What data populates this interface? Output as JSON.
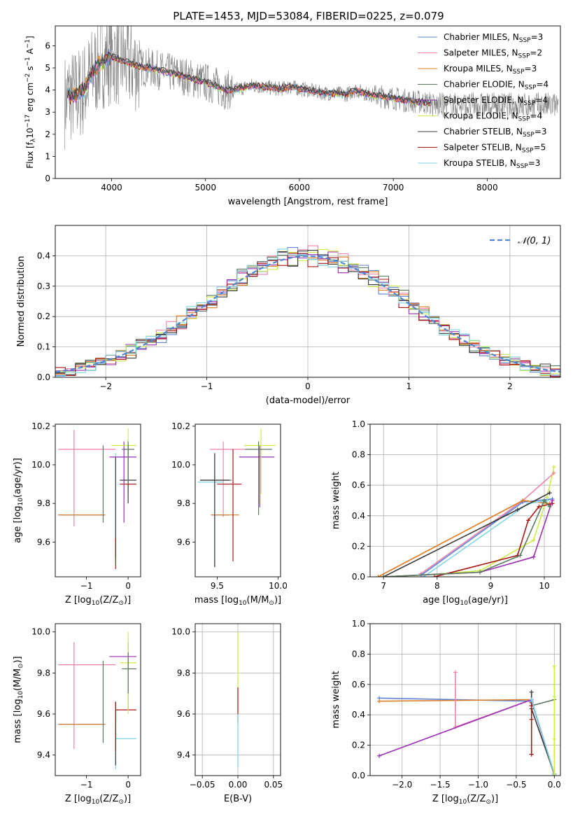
{
  "figure_title": "PLATE=1453, MJD=53084, FIBERID=0225, z=0.079",
  "colors": {
    "chabrier_miles": "#5b86d6",
    "salpeter_miles": "#ee82a8",
    "kroupa_miles": "#e07b22",
    "chabrier_elodie": "#5a7a60",
    "salpeter_elodie": "#9b2fb8",
    "kroupa_elodie": "#ccec4a",
    "chabrier_stelib": "#3a3a3a",
    "salpeter_stelib": "#aa1414",
    "kroupa_stelib": "#7fd6e0",
    "observed": "#808080",
    "normal_fit": "#4f86cf",
    "grid": "#b0b0b0"
  },
  "chart_data": [
    {
      "id": "spectrum",
      "type": "line",
      "xlabel": "wavelength [Angstrom, rest frame]",
      "ylabel_parts": [
        "Flux [f",
        "λ",
        "10",
        "−17",
        " erg cm",
        "−2",
        " s",
        "−1",
        " A",
        "−1",
        "]"
      ],
      "xlim": [
        3400,
        8780
      ],
      "ylim": [
        0,
        6.9
      ],
      "xticks": [
        "4000",
        "5000",
        "6000",
        "7000",
        "8000"
      ],
      "xtick_values": [
        4000,
        5000,
        6000,
        7000,
        8000
      ],
      "yticks": [
        "0",
        "1",
        "2",
        "3",
        "4",
        "5",
        "6"
      ],
      "ytick_values": [
        0,
        1,
        2,
        3,
        4,
        5,
        6
      ],
      "legend_position": "upper right",
      "legend": [
        {
          "name": "Chabrier MILES, N",
          "sub": "SSP",
          "suffix": "=3",
          "color_key": "chabrier_miles"
        },
        {
          "name": "Salpeter MILES, N",
          "sub": "SSP",
          "suffix": "=2",
          "color_key": "salpeter_miles"
        },
        {
          "name": "Kroupa MILES, N",
          "sub": "SSP",
          "suffix": "=3",
          "color_key": "kroupa_miles"
        },
        {
          "name": "Chabrier ELODIE, N",
          "sub": "SSP",
          "suffix": "=4",
          "color_key": "chabrier_elodie"
        },
        {
          "name": "Salpeter ELODIE, N",
          "sub": "SSP",
          "suffix": "=4",
          "color_key": "salpeter_elodie"
        },
        {
          "name": "Kroupa ELODIE, N",
          "sub": "SSP",
          "suffix": "=4",
          "color_key": "kroupa_elodie"
        },
        {
          "name": "Chabrier STELIB, N",
          "sub": "SSP",
          "suffix": "=3",
          "color_key": "chabrier_stelib"
        },
        {
          "name": "Salpeter STELIB, N",
          "sub": "SSP",
          "suffix": "=5",
          "color_key": "salpeter_stelib"
        },
        {
          "name": "Kroupa STELIB, N",
          "sub": "SSP",
          "suffix": "=3",
          "color_key": "kroupa_stelib"
        }
      ],
      "continuum": {
        "x": [
          3530,
          3600,
          3700,
          3800,
          3900,
          4000,
          4100,
          4200,
          4300,
          4400,
          4500,
          4600,
          4700,
          4800,
          4900,
          5000,
          5100,
          5200,
          5300,
          5400,
          5500,
          5600,
          5700,
          5800,
          5900,
          6000,
          6100,
          6200,
          6300,
          6400,
          6500,
          6600,
          6700,
          6800,
          6900,
          7000,
          7100,
          7200,
          7300,
          7400
        ],
        "y": [
          3.8,
          3.7,
          4.0,
          4.8,
          5.3,
          5.5,
          5.35,
          5.2,
          5.05,
          5.0,
          4.9,
          4.8,
          4.7,
          4.6,
          4.45,
          4.35,
          4.2,
          4.0,
          4.0,
          4.1,
          4.2,
          4.15,
          4.1,
          4.05,
          4.15,
          4.05,
          4.0,
          3.9,
          3.85,
          3.85,
          3.8,
          4.0,
          3.85,
          3.75,
          3.7,
          3.65,
          3.55,
          3.5,
          3.45,
          3.4
        ]
      },
      "observed_range": [
        3500,
        8760
      ]
    },
    {
      "id": "residual_hist",
      "type": "histogram",
      "xlabel": "(data-model)/error",
      "ylabel": "Normed distribution",
      "xlim": [
        -2.5,
        2.5
      ],
      "ylim": [
        0,
        0.5
      ],
      "xticks": [
        "−2",
        "−1",
        "0",
        "1",
        "2"
      ],
      "xtick_values": [
        -2,
        -1,
        0,
        1,
        2
      ],
      "yticks": [
        "0.0",
        "0.1",
        "0.2",
        "0.3",
        "0.4"
      ],
      "ytick_values": [
        0,
        0.1,
        0.2,
        0.3,
        0.4
      ],
      "grid": true,
      "bin_width": 0.1,
      "legend_label_prefix": "𝒩",
      "legend_label_args": "(0, 1)",
      "normal_curve": {
        "mean": 0,
        "sigma": 1
      }
    },
    {
      "id": "age_vs_Z",
      "type": "errorbar",
      "xlabel_parts": [
        "Z [log",
        "10",
        "(Z/Z",
        "⊙",
        ")]"
      ],
      "ylabel_parts": [
        "age  [log",
        "10",
        "(age/yr)]"
      ],
      "xlim": [
        -1.75,
        0.3
      ],
      "ylim": [
        9.42,
        10.21
      ],
      "xticks": [
        "−1",
        "0"
      ],
      "xtick_values": [
        -1,
        0
      ],
      "yticks": [
        "9.6",
        "9.8",
        "10.0",
        "10.2"
      ],
      "ytick_values": [
        9.6,
        9.8,
        10.0,
        10.2
      ],
      "points": [
        {
          "c": "salpeter_miles",
          "x": -1.3,
          "xl": -1.68,
          "xh": -0.3,
          "y": 10.08,
          "yl": 9.68,
          "yh": 10.18
        },
        {
          "c": "chabrier_miles",
          "x": -1.1,
          "xl": -1.68,
          "xh": -0.55,
          "y": 9.74,
          "yl": 9.74,
          "yh": 9.74
        },
        {
          "c": "kroupa_miles",
          "x": -1.1,
          "xl": -1.68,
          "xh": -0.55,
          "y": 9.74,
          "yl": 9.74,
          "yh": 9.74
        },
        {
          "c": "chabrier_elodie",
          "x": -0.6,
          "xl": -0.6,
          "xh": -0.6,
          "y": 9.74,
          "yl": 9.7,
          "yh": 10.1
        },
        {
          "c": "kroupa_stelib",
          "x": -0.3,
          "xl": -0.35,
          "xh": -0.25,
          "y": 10.04,
          "yl": 9.49,
          "yh": 10.06
        },
        {
          "c": "chabrier_stelib",
          "x": -0.3,
          "xl": -0.3,
          "xh": -0.3,
          "y": 9.9,
          "yl": 9.52,
          "yh": 10.04
        },
        {
          "c": "salpeter_stelib",
          "x": -0.3,
          "xl": -0.3,
          "xh": -0.3,
          "y": 9.58,
          "yl": 9.46,
          "yh": 9.62
        },
        {
          "c": "salpeter_elodie",
          "x": -0.1,
          "xl": -0.45,
          "xh": 0.2,
          "y": 10.04,
          "yl": 9.7,
          "yh": 10.12
        },
        {
          "c": "kroupa_elodie",
          "x": 0.0,
          "xl": -0.4,
          "xh": 0.2,
          "y": 10.1,
          "yl": 9.85,
          "yh": 10.19
        },
        {
          "c": "chabrier_stelib",
          "x": 0.0,
          "xl": -0.2,
          "xh": 0.2,
          "y": 9.92,
          "yl": 9.8,
          "yh": 10.1
        },
        {
          "c": "chabrier_elodie",
          "x": 0.0,
          "xl": -0.15,
          "xh": 0.15,
          "y": 10.08,
          "yl": 9.9,
          "yh": 10.12
        },
        {
          "c": "salpeter_stelib",
          "x": 0.0,
          "xl": -0.2,
          "xh": 0.2,
          "y": 9.9,
          "yl": 9.9,
          "yh": 9.9
        }
      ]
    },
    {
      "id": "age_vs_mass",
      "type": "errorbar",
      "xlabel_parts": [
        "mass [log",
        "10",
        "(M/M",
        "⊙",
        ")]"
      ],
      "ylabel_parts": [],
      "xlim": [
        9.32,
        10.02
      ],
      "ylim": [
        9.42,
        10.21
      ],
      "xticks": [
        "9.5",
        "10.0"
      ],
      "xtick_values": [
        9.5,
        10.0
      ],
      "yticks": [
        "9.6",
        "9.8",
        "10.0",
        "10.2"
      ],
      "ytick_values": [
        9.6,
        9.8,
        10.0,
        10.2
      ],
      "points": [
        {
          "c": "salpeter_miles",
          "x": 9.55,
          "xl": 9.44,
          "xh": 9.77,
          "y": 10.08,
          "yl": 9.73,
          "yh": 10.12
        },
        {
          "c": "chabrier_miles",
          "x": 9.5,
          "xl": 9.45,
          "xh": 9.6,
          "y": 9.74,
          "yl": 9.74,
          "yh": 9.74
        },
        {
          "c": "kroupa_miles",
          "x": 9.5,
          "xl": 9.45,
          "xh": 9.68,
          "y": 9.74,
          "yl": 9.74,
          "yh": 9.74
        },
        {
          "c": "chabrier_elodie",
          "x": 9.48,
          "xl": 9.36,
          "xh": 9.62,
          "y": 9.92,
          "yl": 9.47,
          "yh": 10.06
        },
        {
          "c": "kroupa_stelib",
          "x": 9.48,
          "xl": 9.34,
          "xh": 9.55,
          "y": 9.91,
          "yl": 9.48,
          "yh": 10.05
        },
        {
          "c": "chabrier_stelib",
          "x": 9.48,
          "xl": 9.36,
          "xh": 9.6,
          "y": 9.92,
          "yl": 9.47,
          "yh": 10.06
        },
        {
          "c": "salpeter_stelib",
          "x": 9.63,
          "xl": 9.5,
          "xh": 9.7,
          "y": 9.9,
          "yl": 9.5,
          "yh": 10.08
        },
        {
          "c": "salpeter_elodie",
          "x": 9.85,
          "xl": 9.68,
          "xh": 9.97,
          "y": 10.04,
          "yl": 9.78,
          "yh": 10.1
        },
        {
          "c": "kroupa_elodie",
          "x": 9.86,
          "xl": 9.72,
          "xh": 9.98,
          "y": 10.1,
          "yl": 9.85,
          "yh": 10.19
        },
        {
          "c": "chabrier_elodie",
          "x": 9.84,
          "xl": 9.73,
          "xh": 9.95,
          "y": 10.08,
          "yl": 9.74,
          "yh": 10.12
        }
      ]
    },
    {
      "id": "mass_weight_vs_age",
      "type": "line",
      "xlabel_parts": [
        "age  [log",
        "10",
        "(age/yr)]"
      ],
      "ylabel": "mass weight",
      "xlim": [
        6.75,
        10.3
      ],
      "ylim": [
        0,
        1.0
      ],
      "xticks": [
        "7",
        "8",
        "9",
        "10"
      ],
      "xtick_values": [
        7,
        8,
        9,
        10
      ],
      "yticks": [
        "0.0",
        "0.2",
        "0.4",
        "0.6",
        "0.8",
        "1.0"
      ],
      "ytick_values": [
        0,
        0.2,
        0.4,
        0.6,
        0.8,
        1.0
      ],
      "grid": true,
      "series": [
        {
          "c": "kroupa_elodie",
          "x": [
            6.9,
            7.7,
            8.8,
            9.8,
            10.05,
            10.18
          ],
          "y": [
            0.0,
            0.01,
            0.04,
            0.24,
            0.52,
            0.72
          ]
        },
        {
          "c": "salpeter_miles",
          "x": [
            7.7,
            9.6,
            10.18
          ],
          "y": [
            0.02,
            0.5,
            0.68
          ]
        },
        {
          "c": "chabrier_miles",
          "x": [
            7.7,
            9.6,
            10.15
          ],
          "y": [
            0.01,
            0.49,
            0.51
          ]
        },
        {
          "c": "kroupa_miles",
          "x": [
            6.9,
            9.6,
            10.1
          ],
          "y": [
            0.0,
            0.5,
            0.48
          ]
        },
        {
          "c": "kroupa_stelib",
          "x": [
            7.75,
            9.7,
            10.05
          ],
          "y": [
            0.0,
            0.48,
            0.5
          ]
        },
        {
          "c": "chabrier_stelib",
          "x": [
            7.0,
            9.5,
            10.1
          ],
          "y": [
            0.0,
            0.44,
            0.55
          ]
        },
        {
          "c": "salpeter_stelib",
          "x": [
            7.95,
            9.5,
            9.7,
            9.9,
            10.15
          ],
          "y": [
            0.0,
            0.14,
            0.37,
            0.46,
            0.48
          ]
        },
        {
          "c": "salpeter_elodie",
          "x": [
            7.0,
            8.8,
            9.8,
            10.15
          ],
          "y": [
            0.0,
            0.03,
            0.13,
            0.5
          ]
        },
        {
          "c": "chabrier_elodie",
          "x": [
            7.0,
            8.8,
            9.55,
            10.0,
            10.1
          ],
          "y": [
            0.0,
            0.03,
            0.14,
            0.5,
            0.46
          ]
        }
      ]
    },
    {
      "id": "mass_vs_Z",
      "type": "errorbar",
      "xlabel_parts": [
        "Z [log",
        "10",
        "(Z/Z",
        "⊙",
        ")]"
      ],
      "ylabel_parts": [
        "mass [log",
        "10",
        "(M/M",
        "⊙",
        ")]"
      ],
      "xlim": [
        -1.75,
        0.3
      ],
      "ylim": [
        9.3,
        10.04
      ],
      "xticks": [
        "−1",
        "0"
      ],
      "xtick_values": [
        -1,
        0
      ],
      "yticks": [
        "9.4",
        "9.6",
        "9.8",
        "10.0"
      ],
      "ytick_values": [
        9.4,
        9.6,
        9.8,
        10.0
      ],
      "points": [
        {
          "c": "salpeter_miles",
          "x": -1.3,
          "xl": -1.68,
          "xh": -0.3,
          "y": 9.84,
          "yl": 9.43,
          "yh": 9.95
        },
        {
          "c": "chabrier_miles",
          "x": -1.1,
          "xl": -1.68,
          "xh": -0.55,
          "y": 9.55,
          "yl": 9.55,
          "yh": 9.55
        },
        {
          "c": "kroupa_miles",
          "x": -1.1,
          "xl": -1.68,
          "xh": -0.55,
          "y": 9.55,
          "yl": 9.55,
          "yh": 9.55
        },
        {
          "c": "chabrier_elodie",
          "x": -0.6,
          "xl": -0.6,
          "xh": -0.6,
          "y": 9.55,
          "yl": 9.46,
          "yh": 9.86
        },
        {
          "c": "kroupa_stelib",
          "x": -0.3,
          "xl": -0.3,
          "xh": 0.2,
          "y": 9.48,
          "yl": 9.33,
          "yh": 9.55
        },
        {
          "c": "chabrier_stelib",
          "x": -0.3,
          "xl": -0.3,
          "xh": -0.3,
          "y": 9.55,
          "yl": 9.35,
          "yh": 9.66
        },
        {
          "c": "salpeter_stelib",
          "x": -0.3,
          "xl": -0.3,
          "xh": 0.2,
          "y": 9.62,
          "yl": 9.42,
          "yh": 9.66
        },
        {
          "c": "salpeter_elodie",
          "x": 0.0,
          "xl": -0.45,
          "xh": 0.2,
          "y": 9.88,
          "yl": 9.62,
          "yh": 9.95
        },
        {
          "c": "kroupa_elodie",
          "x": 0.0,
          "xl": -0.2,
          "xh": 0.2,
          "y": 9.85,
          "yl": 9.6,
          "yh": 10.0
        },
        {
          "c": "chabrier_elodie",
          "x": 0.0,
          "xl": -0.15,
          "xh": 0.2,
          "y": 9.82,
          "yl": 9.7,
          "yh": 9.9
        }
      ]
    },
    {
      "id": "mass_vs_EBV",
      "type": "errorbar",
      "xlabel": "E(B-V)",
      "ylabel_parts": [],
      "xlim": [
        -0.06,
        0.06
      ],
      "ylim": [
        9.3,
        10.04
      ],
      "xticks": [
        "−0.05",
        "0.00",
        "0.05"
      ],
      "xtick_values": [
        -0.05,
        0,
        0.05
      ],
      "yticks": [
        "9.4",
        "9.6",
        "9.8",
        "10.0"
      ],
      "ytick_values": [
        9.4,
        9.6,
        9.8,
        10.0
      ],
      "grid": true,
      "points": [
        {
          "c": "kroupa_elodie",
          "x": 0.0,
          "xl": 0.0,
          "xh": 0.0,
          "y": 9.85,
          "yl": 9.6,
          "yh": 10.0
        },
        {
          "c": "salpeter_stelib",
          "x": 0.0,
          "xl": 0.0,
          "xh": 0.0,
          "y": 9.62,
          "yl": 9.55,
          "yh": 9.73
        },
        {
          "c": "kroupa_stelib",
          "x": 0.0,
          "xl": 0.0,
          "xh": 0.0,
          "y": 9.48,
          "yl": 9.34,
          "yh": 9.6
        }
      ]
    },
    {
      "id": "mass_weight_vs_Z",
      "type": "line",
      "xlabel_parts": [
        "Z [log",
        "10",
        "(Z/Z",
        "⊙",
        ")]"
      ],
      "ylabel": "mass weight",
      "xlim": [
        -2.42,
        0.08
      ],
      "ylim": [
        0,
        1.0
      ],
      "xticks": [
        "−2.0",
        "−1.5",
        "−1.0",
        "−0.5",
        "0.0"
      ],
      "xtick_values": [
        -2.0,
        -1.5,
        -1.0,
        -0.5,
        0.0
      ],
      "yticks": [
        "0.0",
        "0.2",
        "0.4",
        "0.6",
        "0.8",
        "1.0"
      ],
      "ytick_values": [
        0,
        0.2,
        0.4,
        0.6,
        0.8,
        1.0
      ],
      "grid": true,
      "series": [
        {
          "c": "chabrier_miles",
          "x": [
            -2.3,
            -0.3,
            0.0
          ],
          "y": [
            0.51,
            0.49,
            0.01
          ]
        },
        {
          "c": "kroupa_miles",
          "x": [
            -2.3,
            -0.3,
            0.0
          ],
          "y": [
            0.49,
            0.5,
            0.0
          ]
        },
        {
          "c": "salpeter_miles",
          "x": [
            -1.3,
            -1.3,
            -0.3,
            0.0
          ],
          "y": [
            0.68,
            0.32,
            0.5,
            0.0
          ]
        },
        {
          "c": "salpeter_elodie",
          "x": [
            -2.3,
            -0.3,
            0.0
          ],
          "y": [
            0.13,
            0.5,
            0.01
          ]
        },
        {
          "c": "chabrier_elodie",
          "x": [
            -0.3,
            0.0
          ],
          "y": [
            0.46,
            0.5
          ]
        },
        {
          "c": "chabrier_stelib",
          "x": [
            -0.3,
            -0.3,
            0.0
          ],
          "y": [
            0.55,
            0.44,
            0.01
          ]
        },
        {
          "c": "salpeter_stelib",
          "x": [
            -0.3,
            -0.3,
            -0.3,
            -0.3,
            -0.3
          ],
          "y": [
            0.48,
            0.46,
            0.37,
            0.14,
            0.14
          ]
        },
        {
          "c": "kroupa_stelib",
          "x": [
            -0.3,
            0.0
          ],
          "y": [
            0.5,
            0.01
          ]
        },
        {
          "c": "kroupa_elodie",
          "x": [
            0.0,
            0.0,
            0.0,
            0.0
          ],
          "y": [
            0.72,
            0.52,
            0.24,
            0.0
          ]
        }
      ]
    }
  ]
}
